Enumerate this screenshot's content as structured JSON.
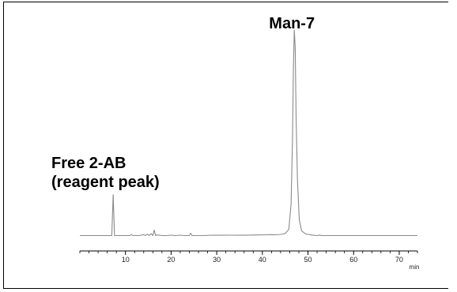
{
  "chart_data": {
    "type": "line",
    "xlabel": "min",
    "xlim": [
      0,
      74
    ],
    "x_ticks": [
      10,
      20,
      30,
      40,
      50,
      60,
      70
    ],
    "x_minor_step": 2,
    "line_color": "#8a8a8a",
    "annotations": [
      {
        "lines": [
          "Man-7"
        ],
        "x": 47.0
      },
      {
        "lines": [
          "Free 2-AB",
          "(reagent peak)"
        ],
        "x": 7.3
      }
    ],
    "series": [
      {
        "x": [
          0,
          2,
          4,
          6,
          7.0,
          7.3,
          7.6,
          8,
          10,
          11,
          11.3,
          11.6,
          12,
          13,
          14,
          14.4,
          14.8,
          15.2,
          15.6,
          16,
          16.3,
          16.6,
          17,
          18,
          19,
          20,
          21,
          22,
          23,
          24,
          24.3,
          24.6,
          25,
          27,
          29,
          31,
          33,
          35,
          37,
          39,
          41,
          42,
          43,
          44,
          45,
          45.8,
          46.3,
          46.6,
          46.8,
          47.0,
          47.2,
          47.4,
          47.7,
          48.1,
          48.6,
          49.5,
          51,
          52,
          52.5,
          53,
          55,
          58,
          61,
          64,
          67,
          70,
          74
        ],
        "y": [
          0,
          0,
          0,
          0,
          0,
          52,
          0,
          0,
          0,
          0,
          1.5,
          0,
          0,
          0,
          1.2,
          0,
          1.8,
          0,
          2.5,
          0,
          7,
          0,
          0.8,
          0,
          0,
          0.5,
          0,
          0.5,
          0,
          0,
          3,
          0,
          0,
          0,
          0.5,
          0.4,
          0.5,
          0.4,
          0.6,
          0.8,
          1,
          1.2,
          1,
          1.5,
          2.5,
          8,
          40,
          120,
          210,
          262,
          240,
          150,
          70,
          20,
          6,
          2,
          0.6,
          0,
          0.6,
          0,
          0,
          0,
          0,
          0,
          0,
          0,
          0
        ]
      }
    ]
  }
}
